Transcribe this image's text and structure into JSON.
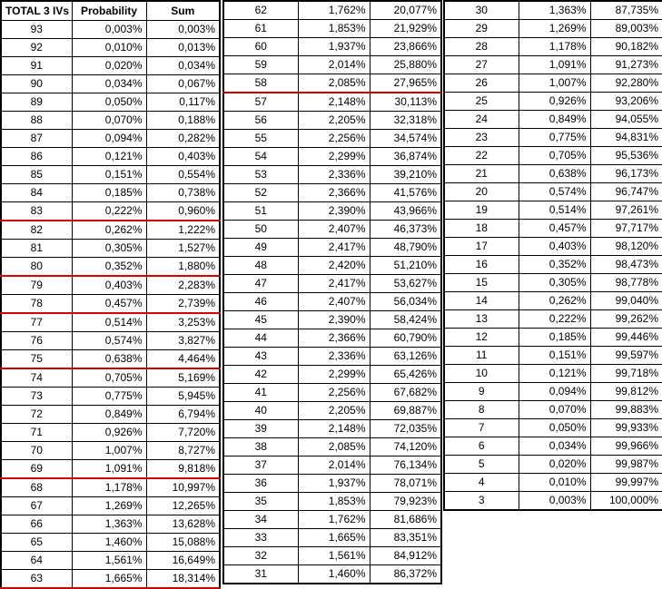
{
  "header": {
    "col_iv": "TOTAL 3 IVs",
    "col_prob": "Probability",
    "col_sum": "Sum"
  },
  "table1": [
    {
      "iv": "93",
      "prob": "0,003%",
      "sum": "0,003%"
    },
    {
      "iv": "92",
      "prob": "0,010%",
      "sum": "0,013%"
    },
    {
      "iv": "91",
      "prob": "0,020%",
      "sum": "0,034%"
    },
    {
      "iv": "90",
      "prob": "0,034%",
      "sum": "0,067%"
    },
    {
      "iv": "89",
      "prob": "0,050%",
      "sum": "0,117%"
    },
    {
      "iv": "88",
      "prob": "0,070%",
      "sum": "0,188%"
    },
    {
      "iv": "87",
      "prob": "0,094%",
      "sum": "0,282%"
    },
    {
      "iv": "86",
      "prob": "0,121%",
      "sum": "0,403%"
    },
    {
      "iv": "85",
      "prob": "0,151%",
      "sum": "0,554%"
    },
    {
      "iv": "84",
      "prob": "0,185%",
      "sum": "0,738%"
    },
    {
      "iv": "83",
      "prob": "0,222%",
      "sum": "0,960%",
      "red": true
    },
    {
      "iv": "82",
      "prob": "0,262%",
      "sum": "1,222%"
    },
    {
      "iv": "81",
      "prob": "0,305%",
      "sum": "1,527%"
    },
    {
      "iv": "80",
      "prob": "0,352%",
      "sum": "1,880%",
      "red": true
    },
    {
      "iv": "79",
      "prob": "0,403%",
      "sum": "2,283%"
    },
    {
      "iv": "78",
      "prob": "0,457%",
      "sum": "2,739%",
      "red": true
    },
    {
      "iv": "77",
      "prob": "0,514%",
      "sum": "3,253%"
    },
    {
      "iv": "76",
      "prob": "0,574%",
      "sum": "3,827%"
    },
    {
      "iv": "75",
      "prob": "0,638%",
      "sum": "4,464%",
      "red": true
    },
    {
      "iv": "74",
      "prob": "0,705%",
      "sum": "5,169%"
    },
    {
      "iv": "73",
      "prob": "0,775%",
      "sum": "5,945%"
    },
    {
      "iv": "72",
      "prob": "0,849%",
      "sum": "6,794%"
    },
    {
      "iv": "71",
      "prob": "0,926%",
      "sum": "7,720%"
    },
    {
      "iv": "70",
      "prob": "1,007%",
      "sum": "8,727%"
    },
    {
      "iv": "69",
      "prob": "1,091%",
      "sum": "9,818%",
      "red": true
    },
    {
      "iv": "68",
      "prob": "1,178%",
      "sum": "10,997%"
    },
    {
      "iv": "67",
      "prob": "1,269%",
      "sum": "12,265%"
    },
    {
      "iv": "66",
      "prob": "1,363%",
      "sum": "13,628%"
    },
    {
      "iv": "65",
      "prob": "1,460%",
      "sum": "15,088%"
    },
    {
      "iv": "64",
      "prob": "1,561%",
      "sum": "16,649%"
    },
    {
      "iv": "63",
      "prob": "1,665%",
      "sum": "18,314%",
      "red": true
    }
  ],
  "table2": [
    {
      "iv": "62",
      "prob": "1,762%",
      "sum": "20,077%"
    },
    {
      "iv": "61",
      "prob": "1,853%",
      "sum": "21,929%"
    },
    {
      "iv": "60",
      "prob": "1,937%",
      "sum": "23,866%"
    },
    {
      "iv": "59",
      "prob": "2,014%",
      "sum": "25,880%"
    },
    {
      "iv": "58",
      "prob": "2,085%",
      "sum": "27,965%",
      "red": true
    },
    {
      "iv": "57",
      "prob": "2,148%",
      "sum": "30,113%"
    },
    {
      "iv": "56",
      "prob": "2,205%",
      "sum": "32,318%"
    },
    {
      "iv": "55",
      "prob": "2,256%",
      "sum": "34,574%"
    },
    {
      "iv": "54",
      "prob": "2,299%",
      "sum": "36,874%"
    },
    {
      "iv": "53",
      "prob": "2,336%",
      "sum": "39,210%"
    },
    {
      "iv": "52",
      "prob": "2,366%",
      "sum": "41,576%"
    },
    {
      "iv": "51",
      "prob": "2,390%",
      "sum": "43,966%"
    },
    {
      "iv": "50",
      "prob": "2,407%",
      "sum": "46,373%"
    },
    {
      "iv": "49",
      "prob": "2,417%",
      "sum": "48,790%"
    },
    {
      "iv": "48",
      "prob": "2,420%",
      "sum": "51,210%"
    },
    {
      "iv": "47",
      "prob": "2,417%",
      "sum": "53,627%"
    },
    {
      "iv": "46",
      "prob": "2,407%",
      "sum": "56,034%"
    },
    {
      "iv": "45",
      "prob": "2,390%",
      "sum": "58,424%"
    },
    {
      "iv": "44",
      "prob": "2,366%",
      "sum": "60,790%"
    },
    {
      "iv": "43",
      "prob": "2,336%",
      "sum": "63,126%"
    },
    {
      "iv": "42",
      "prob": "2,299%",
      "sum": "65,426%"
    },
    {
      "iv": "41",
      "prob": "2,256%",
      "sum": "67,682%"
    },
    {
      "iv": "40",
      "prob": "2,205%",
      "sum": "69,887%"
    },
    {
      "iv": "39",
      "prob": "2,148%",
      "sum": "72,035%"
    },
    {
      "iv": "38",
      "prob": "2,085%",
      "sum": "74,120%"
    },
    {
      "iv": "37",
      "prob": "2,014%",
      "sum": "76,134%"
    },
    {
      "iv": "36",
      "prob": "1,937%",
      "sum": "78,071%"
    },
    {
      "iv": "35",
      "prob": "1,853%",
      "sum": "79,923%"
    },
    {
      "iv": "34",
      "prob": "1,762%",
      "sum": "81,686%"
    },
    {
      "iv": "33",
      "prob": "1,665%",
      "sum": "83,351%"
    },
    {
      "iv": "32",
      "prob": "1,561%",
      "sum": "84,912%"
    },
    {
      "iv": "31",
      "prob": "1,460%",
      "sum": "86,372%"
    }
  ],
  "table3": [
    {
      "iv": "30",
      "prob": "1,363%",
      "sum": "87,735%"
    },
    {
      "iv": "29",
      "prob": "1,269%",
      "sum": "89,003%"
    },
    {
      "iv": "28",
      "prob": "1,178%",
      "sum": "90,182%"
    },
    {
      "iv": "27",
      "prob": "1,091%",
      "sum": "91,273%"
    },
    {
      "iv": "26",
      "prob": "1,007%",
      "sum": "92,280%"
    },
    {
      "iv": "25",
      "prob": "0,926%",
      "sum": "93,206%"
    },
    {
      "iv": "24",
      "prob": "0,849%",
      "sum": "94,055%"
    },
    {
      "iv": "23",
      "prob": "0,775%",
      "sum": "94,831%"
    },
    {
      "iv": "22",
      "prob": "0,705%",
      "sum": "95,536%"
    },
    {
      "iv": "21",
      "prob": "0,638%",
      "sum": "96,173%"
    },
    {
      "iv": "20",
      "prob": "0,574%",
      "sum": "96,747%"
    },
    {
      "iv": "19",
      "prob": "0,514%",
      "sum": "97,261%"
    },
    {
      "iv": "18",
      "prob": "0,457%",
      "sum": "97,717%"
    },
    {
      "iv": "17",
      "prob": "0,403%",
      "sum": "98,120%"
    },
    {
      "iv": "16",
      "prob": "0,352%",
      "sum": "98,473%"
    },
    {
      "iv": "15",
      "prob": "0,305%",
      "sum": "98,778%"
    },
    {
      "iv": "14",
      "prob": "0,262%",
      "sum": "99,040%"
    },
    {
      "iv": "13",
      "prob": "0,222%",
      "sum": "99,262%"
    },
    {
      "iv": "12",
      "prob": "0,185%",
      "sum": "99,446%"
    },
    {
      "iv": "11",
      "prob": "0,151%",
      "sum": "99,597%"
    },
    {
      "iv": "10",
      "prob": "0,121%",
      "sum": "99,718%"
    },
    {
      "iv": "9",
      "prob": "0,094%",
      "sum": "99,812%"
    },
    {
      "iv": "8",
      "prob": "0,070%",
      "sum": "99,883%"
    },
    {
      "iv": "7",
      "prob": "0,050%",
      "sum": "99,933%"
    },
    {
      "iv": "6",
      "prob": "0,034%",
      "sum": "99,966%"
    },
    {
      "iv": "5",
      "prob": "0,020%",
      "sum": "99,987%"
    },
    {
      "iv": "4",
      "prob": "0,010%",
      "sum": "99,997%"
    },
    {
      "iv": "3",
      "prob": "0,003%",
      "sum": "100,000%"
    }
  ],
  "colors": {
    "separator": "#d00000",
    "border": "#000000",
    "background": "#ffffff"
  }
}
